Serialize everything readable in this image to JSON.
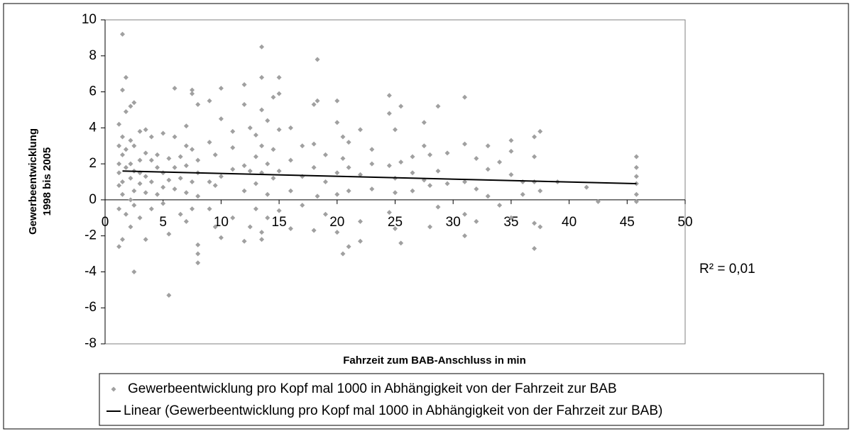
{
  "chart_data": {
    "type": "scatter",
    "xlabel": "Fahrzeit zum BAB-Anschluss in min",
    "ylabel": [
      "Gewerbeentwicklung",
      "1998 bis 2005"
    ],
    "annotation": "R² = 0,01",
    "xlim": [
      0,
      50
    ],
    "xticks": [
      0,
      5,
      10,
      15,
      20,
      25,
      30,
      35,
      40,
      45,
      50
    ],
    "ylim": [
      -8,
      10
    ],
    "yticks": [
      -8,
      -6,
      -4,
      -2,
      0,
      2,
      4,
      6,
      8,
      10
    ],
    "legend": "bottom",
    "series": [
      {
        "name": "Gewerbeentwicklung pro Kopf mal 1000 in Abhängigkeit von der Fahrzeit zur BAB",
        "type": "scatter",
        "color": "#a0a0a0",
        "x": [
          1.2,
          1.2,
          1.2,
          1.2,
          1.2,
          1.2,
          1.2,
          1.5,
          1.5,
          1.5,
          1.5,
          1.5,
          1.5,
          1.5,
          1.8,
          1.8,
          1.8,
          1.8,
          1.8,
          2.2,
          2.2,
          2.2,
          2.2,
          2.2,
          2.2,
          2.5,
          2.5,
          2.5,
          2.5,
          2.5,
          2.5,
          3,
          3,
          3,
          3,
          3,
          3.5,
          3.5,
          3.5,
          3.5,
          3.5,
          4,
          4,
          4,
          4,
          4.5,
          4.5,
          4.5,
          5,
          5,
          5,
          5,
          5.5,
          5.5,
          5.5,
          5.5,
          6,
          6,
          6,
          6,
          6.5,
          6.5,
          6.5,
          7,
          7,
          7,
          7,
          7,
          7.5,
          7.5,
          7.5,
          7.5,
          7.5,
          8,
          8,
          8,
          8,
          8,
          8,
          8,
          9,
          9,
          9,
          9,
          9.5,
          9.5,
          9.5,
          10,
          10,
          10,
          10,
          11,
          11,
          11,
          11,
          12,
          12,
          12,
          12,
          12,
          12.5,
          12.5,
          12.5,
          13,
          13,
          13,
          13,
          13.5,
          13.5,
          13.5,
          13.5,
          13.5,
          13.5,
          13.5,
          14,
          14,
          14,
          14,
          14.5,
          14.5,
          14.5,
          15,
          15,
          15,
          15,
          15,
          16,
          16,
          16,
          16,
          17,
          17,
          17,
          18,
          18,
          18,
          18,
          18.3,
          18.3,
          18.3,
          19,
          19,
          19,
          20,
          20,
          20,
          20,
          20,
          20.5,
          20.5,
          20.5,
          21,
          21,
          21,
          21,
          22,
          22,
          22,
          22,
          23,
          23,
          23,
          24.5,
          24.5,
          24.5,
          24.5,
          25,
          25,
          25,
          25,
          25.5,
          25.5,
          25.5,
          26.5,
          26.5,
          26.5,
          27.5,
          27.5,
          27.5,
          28,
          28,
          28,
          28.7,
          28.7,
          28.7,
          29.5,
          29.5,
          31,
          31,
          31,
          31,
          31,
          32,
          32,
          32,
          33,
          33,
          33,
          34,
          34,
          35,
          35,
          35,
          35,
          36,
          36,
          37,
          37,
          37,
          37,
          37,
          37.5,
          37.5,
          37.5,
          39,
          41.5,
          42.5,
          45.8,
          45.8,
          45.8,
          45.8,
          45.8,
          45.8
        ],
        "values": [
          2.0,
          1.5,
          4.2,
          -0.5,
          0.8,
          3.0,
          -2.6,
          9.2,
          2.5,
          1.0,
          6.1,
          -2.2,
          3.5,
          0.3,
          6.8,
          1.8,
          2.8,
          -0.8,
          4.9,
          1.2,
          0,
          3.3,
          -1.5,
          2.0,
          5.2,
          -4.0,
          1.6,
          3.0,
          0.5,
          5.4,
          -0.3,
          2.2,
          0.9,
          3.8,
          -1.0,
          1.5,
          1.3,
          -2.2,
          0.4,
          2.6,
          3.9,
          1.0,
          -0.5,
          2.2,
          3.5,
          0.3,
          1.8,
          2.5,
          1.5,
          3.7,
          -0.2,
          0.7,
          -5.3,
          -1.9,
          1.1,
          2.3,
          6.2,
          3.5,
          0.6,
          1.8,
          1.2,
          -0.8,
          2.4,
          4.1,
          1.9,
          0.4,
          3.0,
          -1.2,
          6.1,
          2.8,
          1.0,
          -0.5,
          5.9,
          -3.5,
          -2.5,
          1.5,
          2.2,
          5.3,
          0.2,
          -3.0,
          1.0,
          5.5,
          -0.5,
          3.2,
          2.5,
          0.8,
          -1.5,
          6.2,
          4.5,
          1.3,
          -2.1,
          2.9,
          -1.0,
          1.7,
          3.8,
          6.4,
          5.3,
          1.9,
          -2.3,
          0.5,
          1.6,
          4.0,
          -1.5,
          2.4,
          0.9,
          -0.5,
          3.6,
          8.5,
          6.8,
          5.0,
          1.5,
          -1.8,
          -2.2,
          3.0,
          2.0,
          4.4,
          0.3,
          -1.0,
          5.7,
          1.2,
          2.8,
          6.8,
          5.9,
          1.6,
          -0.6,
          3.9,
          2.2,
          4.0,
          0.5,
          -1.6,
          1.3,
          3.0,
          -0.3,
          5.3,
          1.8,
          -1.7,
          3.1,
          7.8,
          5.5,
          0.2,
          2.5,
          1.0,
          -0.8,
          5.5,
          4.3,
          1.5,
          -1.8,
          0.3,
          -3.0,
          2.3,
          3.5,
          -2.6,
          1.8,
          0.5,
          3.2,
          3.9,
          1.4,
          -1.2,
          -2.3,
          2.0,
          0.6,
          2.8,
          5.8,
          4.8,
          1.9,
          -0.7,
          3.9,
          1.2,
          -1.6,
          0.4,
          5.2,
          -2.4,
          2.1,
          1.5,
          0.5,
          2.4,
          4.3,
          3.0,
          1.1,
          -1.5,
          2.5,
          0.8,
          5.2,
          1.6,
          -0.4,
          2.6,
          0.9,
          5.7,
          3.1,
          -2.0,
          1.0,
          -0.8,
          2.3,
          0.6,
          -1.2,
          1.7,
          3.0,
          0.2,
          2.1,
          -0.3,
          3.3,
          1.4,
          -1.0,
          2.7,
          1.0,
          0.3,
          3.5,
          -2.7,
          2.4,
          1.0,
          -1.3,
          3.8,
          0.5,
          -1.5,
          1.0,
          0.7,
          -0.1,
          2.4,
          1.8,
          0.9,
          0.3,
          -0.1,
          1.3
        ]
      },
      {
        "name": "Linear (Gewerbeentwicklung pro Kopf mal 1000 in Abhängigkeit von der Fahrzeit zur BAB)",
        "type": "line",
        "color": "#000000",
        "x": [
          1.5,
          45.8
        ],
        "values": [
          1.6,
          0.9
        ]
      }
    ]
  }
}
